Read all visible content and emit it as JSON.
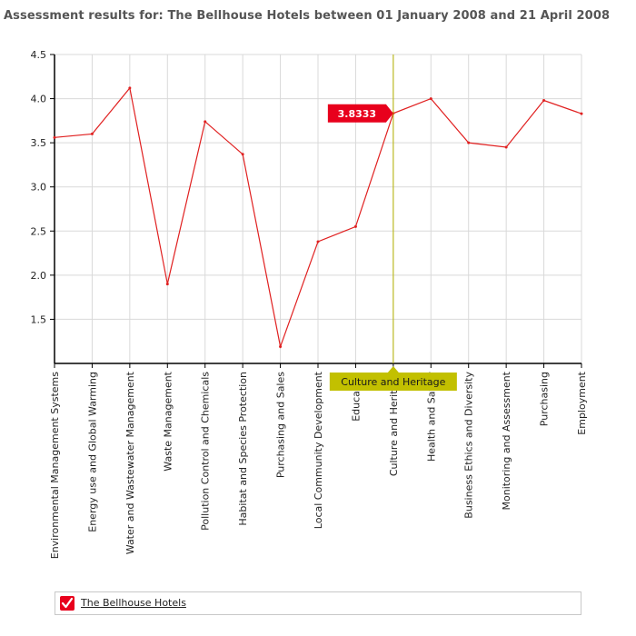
{
  "title": "Assessment results for: The Bellhouse Hotels between 01 January 2008 and 21 April 2008",
  "chart_data": {
    "type": "line",
    "categories": [
      "Environmental Management Systems",
      "Energy use and Global Warming",
      "Water and Wastewater Management",
      "Waste Management",
      "Pollution Control and Chemicals",
      "Habitat and Species Protection",
      "Purchasing and Sales",
      "Local Community Development",
      "Education",
      "Culture and Heritage",
      "Health and Safety",
      "Business Ethics and Diversity",
      "Monitoring and Assessment",
      "Purchasing",
      "Employment"
    ],
    "series": [
      {
        "name": "The Bellhouse Hotels",
        "color": "#e02020",
        "values": [
          3.56,
          3.6,
          4.12,
          1.9,
          3.74,
          3.37,
          1.19,
          2.38,
          2.55,
          3.8333,
          4.0,
          3.5,
          3.45,
          3.98,
          3.83
        ]
      }
    ],
    "yticks": [
      "1.5",
      "2.0",
      "2.5",
      "3.0",
      "3.5",
      "4.0",
      "4.5"
    ],
    "ylim": [
      1.0,
      4.5
    ],
    "grid": true,
    "tooltip": {
      "category_index": 9,
      "value_label": "3.8333",
      "category_label": "Culture and Heritage"
    }
  },
  "legend": {
    "label": "The Bellhouse Hotels",
    "checked": true,
    "check_color": "#e8001c"
  },
  "colors": {
    "line": "#e02020",
    "grid": "#d9d9d9",
    "axis": "#000000",
    "crosshair": "#b5b200",
    "value_flag": "#e8001c",
    "category_flag": "#c2c000"
  }
}
